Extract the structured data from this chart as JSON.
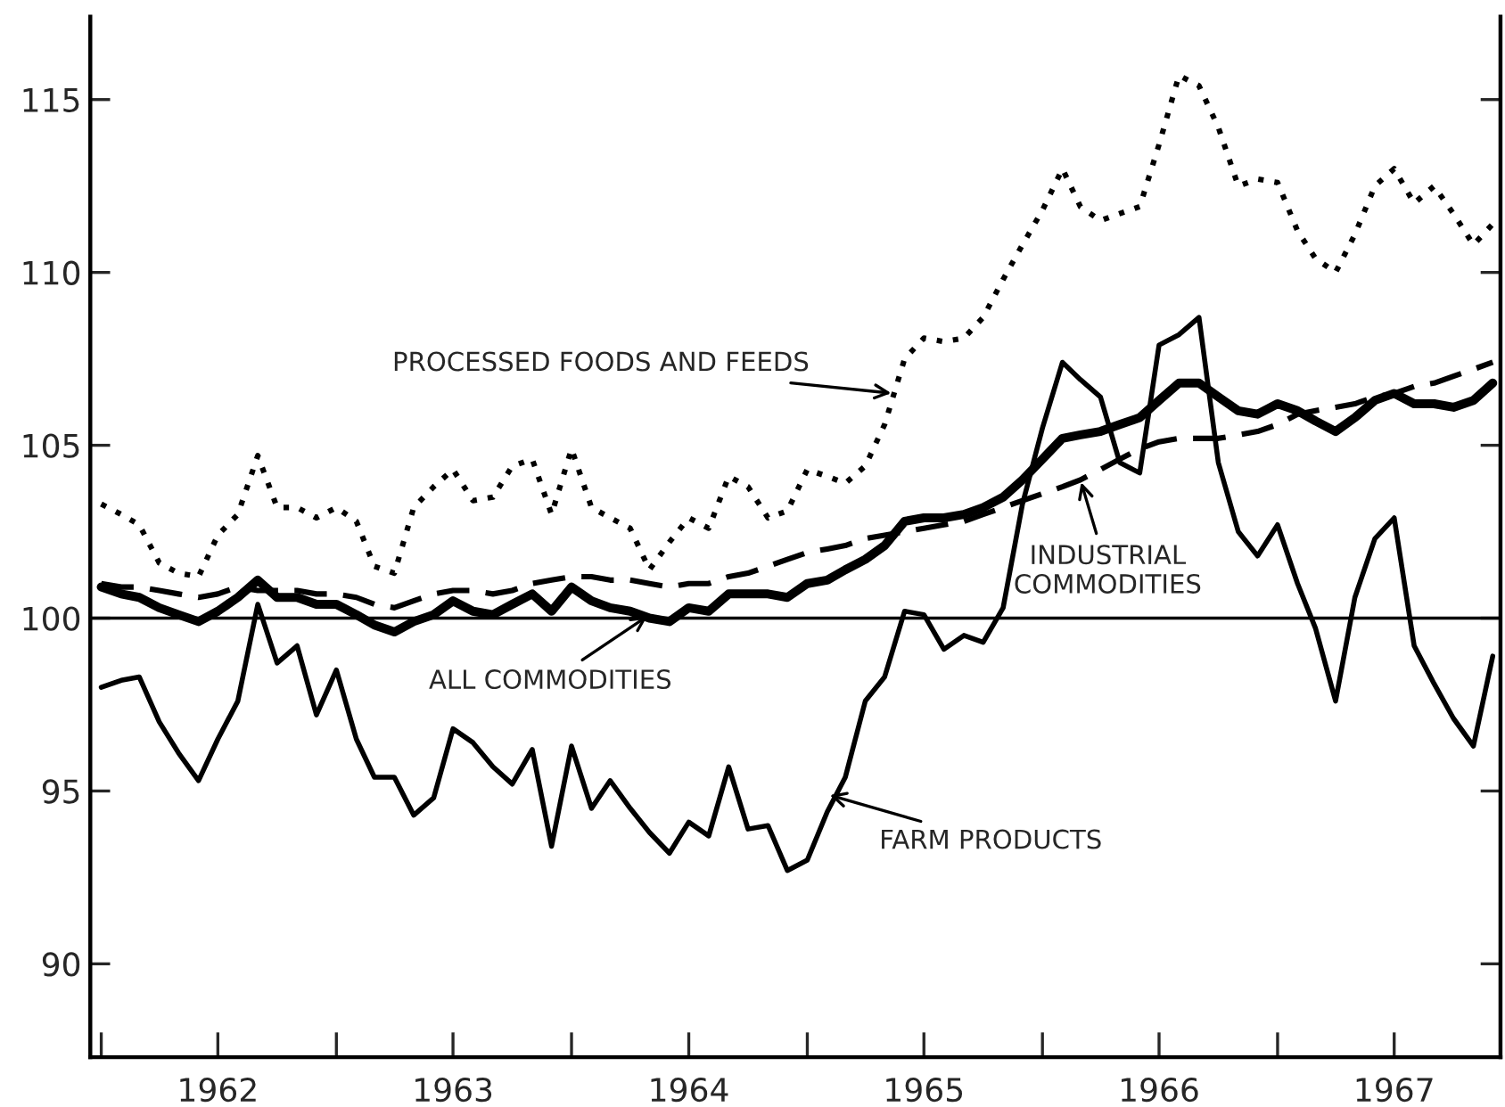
{
  "chart_data": {
    "type": "line",
    "x": [
      "1962-01",
      "1962-02",
      "1962-03",
      "1962-04",
      "1962-05",
      "1962-06",
      "1962-07",
      "1962-08",
      "1962-09",
      "1962-10",
      "1962-11",
      "1962-12",
      "1963-01",
      "1963-02",
      "1963-03",
      "1963-04",
      "1963-05",
      "1963-06",
      "1963-07",
      "1963-08",
      "1963-09",
      "1963-10",
      "1963-11",
      "1963-12",
      "1964-01",
      "1964-02",
      "1964-03",
      "1964-04",
      "1964-05",
      "1964-06",
      "1964-07",
      "1964-08",
      "1964-09",
      "1964-10",
      "1964-11",
      "1964-12",
      "1965-01",
      "1965-02",
      "1965-03",
      "1965-04",
      "1965-05",
      "1965-06",
      "1965-07",
      "1965-08",
      "1965-09",
      "1965-10",
      "1965-11",
      "1965-12",
      "1966-01",
      "1966-02",
      "1966-03",
      "1966-04",
      "1966-05",
      "1966-06",
      "1966-07",
      "1966-08",
      "1966-09",
      "1966-10",
      "1966-11",
      "1966-12",
      "1967-01",
      "1967-02",
      "1967-03",
      "1967-04",
      "1967-05",
      "1967-06",
      "1967-07",
      "1967-08",
      "1967-09",
      "1967-10",
      "1967-11",
      "1967-12"
    ],
    "series": [
      {
        "color": "#000000",
        "line_style": "dotted",
        "values": [
          103.3,
          103.0,
          102.7,
          101.6,
          101.3,
          101.2,
          102.4,
          103.0,
          104.7,
          103.2,
          103.2,
          102.9,
          103.2,
          102.8,
          101.5,
          101.3,
          103.2,
          103.8,
          104.3,
          103.4,
          103.5,
          104.4,
          104.6,
          103.0,
          104.9,
          103.2,
          102.9,
          102.6,
          101.4,
          102.2,
          102.9,
          102.6,
          104.1,
          103.8,
          102.9,
          103.1,
          104.3,
          104.1,
          103.9,
          104.4,
          105.6,
          107.5,
          108.1,
          108.0,
          108.1,
          108.7,
          109.8,
          110.8,
          111.8,
          113.0,
          111.9,
          111.5,
          111.7,
          111.9,
          113.7,
          115.7,
          115.4,
          114.2,
          112.5,
          112.7,
          112.6,
          111.2,
          110.4,
          110.0,
          111.1,
          112.5,
          113.0,
          112.0,
          112.5,
          111.7,
          110.8,
          111.4
        ]
      },
      {
        "color": "#000000",
        "line_style": "dashed",
        "values": [
          101.0,
          100.9,
          100.9,
          100.8,
          100.7,
          100.6,
          100.7,
          100.9,
          100.8,
          100.8,
          100.8,
          100.7,
          100.7,
          100.6,
          100.4,
          100.3,
          100.5,
          100.7,
          100.8,
          100.8,
          100.7,
          100.8,
          101.0,
          101.1,
          101.2,
          101.2,
          101.1,
          101.1,
          101.0,
          100.9,
          101.0,
          101.0,
          101.2,
          101.3,
          101.5,
          101.7,
          101.9,
          102.0,
          102.1,
          102.3,
          102.4,
          102.5,
          102.6,
          102.7,
          102.8,
          103.0,
          103.2,
          103.4,
          103.6,
          103.8,
          104.0,
          104.3,
          104.6,
          104.9,
          105.1,
          105.2,
          105.2,
          105.2,
          105.3,
          105.4,
          105.6,
          105.9,
          106.0,
          106.1,
          106.2,
          106.4,
          106.5,
          106.7,
          106.8,
          107.0,
          107.2,
          107.4
        ]
      },
      {
        "color": "#000000",
        "line_style": "solid",
        "values": [
          100.9,
          100.7,
          100.6,
          100.3,
          100.1,
          99.9,
          100.2,
          100.6,
          101.1,
          100.6,
          100.6,
          100.4,
          100.4,
          100.1,
          99.8,
          99.6,
          99.9,
          100.1,
          100.5,
          100.2,
          100.1,
          100.4,
          100.7,
          100.2,
          100.9,
          100.5,
          100.3,
          100.2,
          100.0,
          99.9,
          100.3,
          100.2,
          100.7,
          100.7,
          100.7,
          100.6,
          101.0,
          101.1,
          101.4,
          101.7,
          102.1,
          102.8,
          102.9,
          102.9,
          103.0,
          103.2,
          103.5,
          104.0,
          104.6,
          105.2,
          105.3,
          105.4,
          105.6,
          105.8,
          106.3,
          106.8,
          106.8,
          106.4,
          106.0,
          105.9,
          106.2,
          106.0,
          105.7,
          105.4,
          105.8,
          106.3,
          106.5,
          106.2,
          106.2,
          106.1,
          106.3,
          106.8
        ]
      },
      {
        "color": "#000000",
        "line_style": "solid",
        "values": [
          98.0,
          98.2,
          98.3,
          97.0,
          96.1,
          95.3,
          96.5,
          97.6,
          100.4,
          98.7,
          99.2,
          97.2,
          98.5,
          96.5,
          95.4,
          95.4,
          94.3,
          94.8,
          96.8,
          96.4,
          95.7,
          95.2,
          96.2,
          93.4,
          96.3,
          94.5,
          95.3,
          94.5,
          93.8,
          93.2,
          94.1,
          93.7,
          95.7,
          93.9,
          94.0,
          92.7,
          93.0,
          94.4,
          95.4,
          97.6,
          98.3,
          100.2,
          100.1,
          99.1,
          99.5,
          99.3,
          100.3,
          103.3,
          105.5,
          107.4,
          106.9,
          106.4,
          104.5,
          104.2,
          107.9,
          108.2,
          108.7,
          104.5,
          102.5,
          101.8,
          102.7,
          101.0,
          99.7,
          97.6,
          100.6,
          102.3,
          102.9,
          99.2,
          98.1,
          97.1,
          96.3,
          98.9
        ]
      }
    ],
    "xlim": [
      "1961-12-15",
      "1967-12-13"
    ],
    "xticks": [
      {
        "value": "1962-01-01",
        "label": null
      },
      {
        "value": "1962-07-01",
        "label": "1962"
      },
      {
        "value": "1963-01-01",
        "label": null
      },
      {
        "value": "1963-07-01",
        "label": "1963"
      },
      {
        "value": "1964-01-01",
        "label": null
      },
      {
        "value": "1964-07-01",
        "label": "1964"
      },
      {
        "value": "1965-01-01",
        "label": null
      },
      {
        "value": "1965-07-01",
        "label": "1965"
      },
      {
        "value": "1966-01-01",
        "label": null
      },
      {
        "value": "1966-07-01",
        "label": "1966"
      },
      {
        "value": "1967-01-01",
        "label": null
      },
      {
        "value": "1967-07-01",
        "label": "1967"
      }
    ],
    "ylim": [
      87.3,
      117.4
    ],
    "yticks": [
      90,
      95,
      100,
      105,
      110,
      115
    ],
    "ref_lines": [
      {
        "axis": "y",
        "value": 100,
        "color": "#000000",
        "line_style": "solid"
      }
    ],
    "annotations": [
      {
        "text": "PROCESSED FOODS AND FEEDS",
        "x": "1965-05-15",
        "y": 106.5
      },
      {
        "text": "INDUSTRIAL\nCOMMODITIES",
        "x": "1966-03",
        "y": 104.0
      },
      {
        "text": "ALL COMMODITIES",
        "x": "1964-05",
        "y": 100.1
      },
      {
        "text": "FARM PRODUCTS",
        "x": "1965-02",
        "y": 94.9
      }
    ],
    "grid": false,
    "legend": false,
    "marker": "none"
  }
}
